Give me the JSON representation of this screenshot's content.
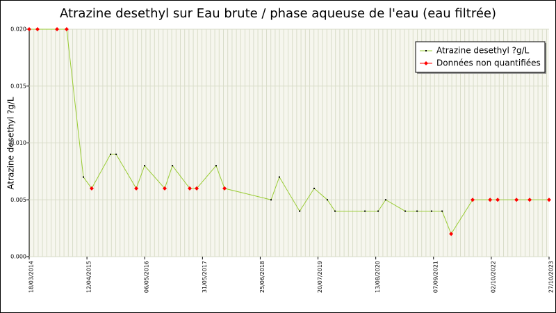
{
  "chart_data": {
    "type": "line",
    "title": "Atrazine desethyl sur Eau brute / phase aqueuse de l'eau (eau filtrée)",
    "ylabel": "Atrazine desethyl ?g/L",
    "x": [
      "18/03/2014",
      "13/05/2014",
      "22/09/2014",
      "26/11/2014",
      "19/03/2015",
      "14/05/2015",
      "18/09/2015",
      "26/10/2015",
      "10/03/2016",
      "05/05/2016",
      "18/09/2016",
      "09/11/2016",
      "06/03/2017",
      "22/04/2017",
      "31/08/2017",
      "27/10/2017",
      "06/09/2018",
      "01/11/2018",
      "18/03/2019",
      "24/06/2019",
      "21/09/2019",
      "12/11/2019",
      "01/06/2020",
      "29/08/2020",
      "19/10/2020",
      "28/02/2021",
      "19/05/2021",
      "25/08/2021",
      "04/11/2021",
      "04/01/2022",
      "29/05/2022",
      "24/09/2022",
      "14/11/2022",
      "21/03/2023",
      "18/06/2023",
      "27/10/2023"
    ],
    "series": [
      {
        "name": "Atrazine desethyl ?g/L",
        "color": "#99cc33",
        "marker_color": "#000000",
        "values": [
          0.02,
          0.02,
          0.02,
          0.02,
          0.007,
          0.006,
          0.009,
          0.009,
          0.006,
          0.008,
          0.006,
          0.008,
          0.006,
          0.006,
          0.008,
          0.006,
          0.005,
          0.007,
          0.004,
          0.006,
          0.005,
          0.004,
          0.004,
          0.004,
          0.005,
          0.004,
          0.004,
          0.004,
          0.004,
          0.002,
          0.005,
          0.005,
          0.005,
          0.005,
          0.005,
          0.005
        ]
      },
      {
        "name": "Données non quantifiées",
        "color": "#ff0000",
        "values": [
          0.02,
          0.02,
          0.02,
          0.02,
          null,
          0.006,
          null,
          null,
          0.006,
          null,
          0.006,
          null,
          0.006,
          0.006,
          null,
          0.006,
          null,
          null,
          null,
          null,
          null,
          null,
          null,
          null,
          null,
          null,
          null,
          null,
          null,
          0.002,
          0.005,
          0.005,
          0.005,
          0.005,
          0.005,
          0.005
        ]
      }
    ],
    "xlim": [
      "18/03/2014",
      "27/10/2023"
    ],
    "xticks": [
      "18/03/2014",
      "12/04/2015",
      "06/05/2016",
      "31/05/2017",
      "25/06/2018",
      "20/07/2019",
      "13/08/2020",
      "07/09/2021",
      "02/10/2022",
      "27/10/2023"
    ],
    "ylim": [
      0,
      0.02
    ],
    "yticks": [
      {
        "value": 0,
        "label": "0.000"
      },
      0.005,
      {
        "value": 0.01,
        "label": "0.010"
      },
      0.015,
      {
        "value": 0.02,
        "label": "0.020"
      }
    ],
    "grid": true,
    "legend": "upper right"
  }
}
